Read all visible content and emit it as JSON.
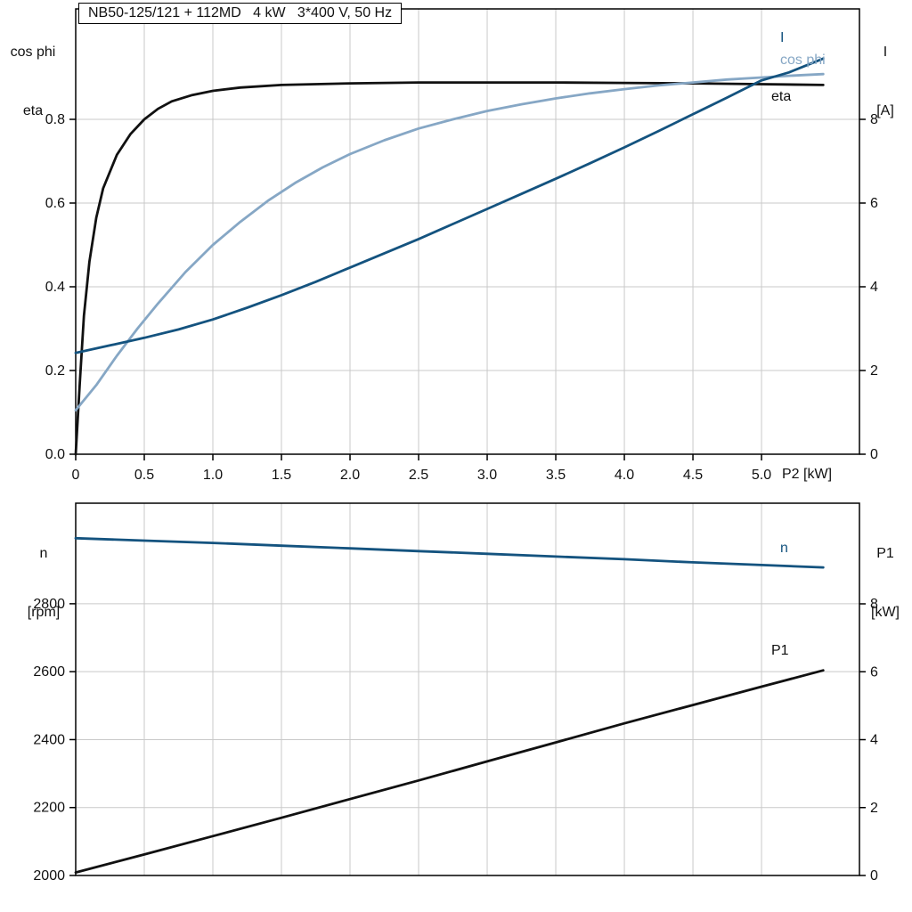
{
  "colors": {
    "grid": "#C9C9C9",
    "axis": "#000000",
    "background": "#FFFFFF",
    "black_curve": "#111111",
    "dark_blue": "#14537F",
    "light_blue": "#86A7C5"
  },
  "chart_data": [
    {
      "id": "top",
      "type": "line",
      "title": "NB50-125/121 + 112MD   4 kW   3*400 V, 50 Hz",
      "x_axis": {
        "label": "P2 [kW]",
        "min": 0,
        "max": 5.714,
        "ticks": [
          0,
          0.5,
          1.0,
          1.5,
          2.0,
          2.5,
          3.0,
          3.5,
          4.0,
          4.5,
          5.0
        ],
        "tick_labels": [
          "0",
          "0.5",
          "1.0",
          "1.5",
          "2.0",
          "2.5",
          "3.0",
          "3.5",
          "4.0",
          "4.5",
          "5.0"
        ],
        "grid": true
      },
      "y_left": {
        "label_lines": [
          "cos phi",
          "eta"
        ],
        "min": 0,
        "max": 1.0638,
        "ticks": [
          0.0,
          0.2,
          0.4,
          0.6,
          0.8
        ],
        "tick_labels": [
          "0.0",
          "0.2",
          "0.4",
          "0.6",
          "0.8"
        ]
      },
      "y_right": {
        "label_lines": [
          "I",
          "[A]"
        ],
        "min": 0,
        "max": 10.638,
        "ticks": [
          0,
          2,
          4,
          6,
          8
        ],
        "tick_labels": [
          "0",
          "2",
          "4",
          "6",
          "8"
        ]
      },
      "legend_position": "end-of-curve",
      "series": [
        {
          "name": "eta",
          "axis": "left",
          "color": "#111111",
          "points": [
            [
              0,
              0.0
            ],
            [
              0.03,
              0.17
            ],
            [
              0.06,
              0.33
            ],
            [
              0.1,
              0.46
            ],
            [
              0.15,
              0.565
            ],
            [
              0.2,
              0.635
            ],
            [
              0.3,
              0.715
            ],
            [
              0.4,
              0.765
            ],
            [
              0.5,
              0.8
            ],
            [
              0.6,
              0.825
            ],
            [
              0.7,
              0.843
            ],
            [
              0.85,
              0.858
            ],
            [
              1.0,
              0.868
            ],
            [
              1.2,
              0.876
            ],
            [
              1.5,
              0.882
            ],
            [
              2.0,
              0.886
            ],
            [
              2.5,
              0.888
            ],
            [
              3.0,
              0.888
            ],
            [
              3.5,
              0.888
            ],
            [
              4.0,
              0.887
            ],
            [
              4.5,
              0.886
            ],
            [
              5.0,
              0.884
            ],
            [
              5.45,
              0.882
            ]
          ]
        },
        {
          "name": "cos phi",
          "axis": "left",
          "color": "#86A7C5",
          "points": [
            [
              0,
              0.105
            ],
            [
              0.15,
              0.165
            ],
            [
              0.3,
              0.235
            ],
            [
              0.45,
              0.3
            ],
            [
              0.6,
              0.36
            ],
            [
              0.8,
              0.435
            ],
            [
              1.0,
              0.5
            ],
            [
              1.2,
              0.555
            ],
            [
              1.4,
              0.605
            ],
            [
              1.6,
              0.648
            ],
            [
              1.8,
              0.685
            ],
            [
              2.0,
              0.717
            ],
            [
              2.25,
              0.75
            ],
            [
              2.5,
              0.778
            ],
            [
              2.75,
              0.8
            ],
            [
              3.0,
              0.82
            ],
            [
              3.25,
              0.836
            ],
            [
              3.5,
              0.85
            ],
            [
              3.75,
              0.862
            ],
            [
              4.0,
              0.872
            ],
            [
              4.25,
              0.881
            ],
            [
              4.5,
              0.888
            ],
            [
              4.75,
              0.895
            ],
            [
              5.0,
              0.9
            ],
            [
              5.2,
              0.904
            ],
            [
              5.45,
              0.908
            ]
          ]
        },
        {
          "name": "I",
          "axis": "right",
          "color": "#14537F",
          "points": [
            [
              0,
              2.42
            ],
            [
              0.25,
              2.6
            ],
            [
              0.5,
              2.78
            ],
            [
              0.75,
              2.98
            ],
            [
              1.0,
              3.22
            ],
            [
              1.25,
              3.5
            ],
            [
              1.5,
              3.8
            ],
            [
              1.75,
              4.12
            ],
            [
              2.0,
              4.46
            ],
            [
              2.25,
              4.8
            ],
            [
              2.5,
              5.14
            ],
            [
              2.75,
              5.5
            ],
            [
              3.0,
              5.86
            ],
            [
              3.25,
              6.22
            ],
            [
              3.5,
              6.58
            ],
            [
              3.75,
              6.95
            ],
            [
              4.0,
              7.33
            ],
            [
              4.25,
              7.72
            ],
            [
              4.5,
              8.12
            ],
            [
              4.75,
              8.52
            ],
            [
              5.0,
              8.93
            ],
            [
              5.2,
              9.12
            ],
            [
              5.45,
              9.45
            ]
          ]
        }
      ]
    },
    {
      "id": "bottom",
      "type": "line",
      "title": "",
      "x_axis": {
        "label": "",
        "min": 0,
        "max": 5.714,
        "ticks": [
          0,
          0.5,
          1.0,
          1.5,
          2.0,
          2.5,
          3.0,
          3.5,
          4.0,
          4.5,
          5.0
        ],
        "tick_labels": [],
        "grid": true
      },
      "y_left": {
        "label_lines": [
          "n",
          "[rpm]"
        ],
        "min": 2000,
        "max": 3096,
        "ticks": [
          2000,
          2200,
          2400,
          2600,
          2800
        ],
        "tick_labels": [
          "2000",
          "2200",
          "2400",
          "2600",
          "2800"
        ]
      },
      "y_right": {
        "label_lines": [
          "P1",
          "[kW]"
        ],
        "min": 0,
        "max": 10.964,
        "ticks": [
          0,
          2,
          4,
          6,
          8
        ],
        "tick_labels": [
          "0",
          "2",
          "4",
          "6",
          "8"
        ]
      },
      "legend_position": "end-of-curve",
      "series": [
        {
          "name": "n",
          "axis": "left",
          "color": "#14537F",
          "points": [
            [
              0,
              2993
            ],
            [
              0.5,
              2986
            ],
            [
              1.0,
              2979
            ],
            [
              1.5,
              2971
            ],
            [
              2.0,
              2963
            ],
            [
              2.5,
              2955
            ],
            [
              3.0,
              2947
            ],
            [
              3.5,
              2939
            ],
            [
              4.0,
              2931
            ],
            [
              4.5,
              2922
            ],
            [
              5.0,
              2914
            ],
            [
              5.45,
              2907
            ]
          ]
        },
        {
          "name": "P1",
          "axis": "right",
          "color": "#111111",
          "points": [
            [
              0,
              0.09
            ],
            [
              0.5,
              0.62
            ],
            [
              1.0,
              1.16
            ],
            [
              1.5,
              1.7
            ],
            [
              2.0,
              2.25
            ],
            [
              2.5,
              2.8
            ],
            [
              3.0,
              3.36
            ],
            [
              3.5,
              3.92
            ],
            [
              4.0,
              4.48
            ],
            [
              4.5,
              5.02
            ],
            [
              5.0,
              5.56
            ],
            [
              5.45,
              6.04
            ]
          ]
        }
      ]
    }
  ]
}
